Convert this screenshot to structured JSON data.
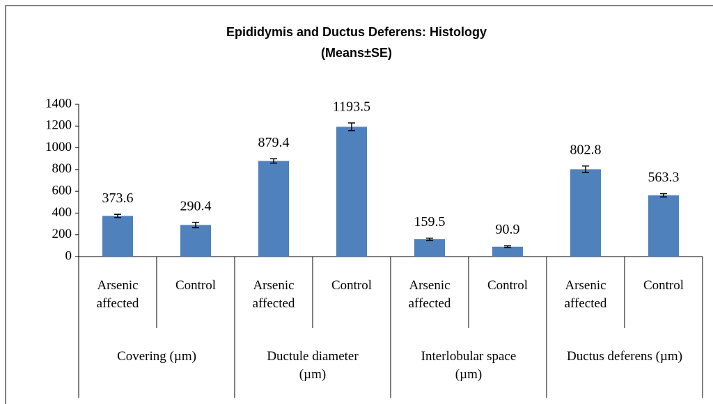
{
  "chart_data": {
    "type": "bar",
    "title": "Epididymis and Ductus Deferens: Histology",
    "subtitle": "(Means±SE)",
    "categories": [
      "Arsenic affected",
      "Control",
      "Arsenic affected",
      "Control",
      "Arsenic affected",
      "Control",
      "Arsenic affected",
      "Control"
    ],
    "groups": [
      "Covering (µm)",
      "Ductule diameter (µm)",
      "Interlobular space (µm)",
      "Ductus deferens (µm)"
    ],
    "values": [
      373.6,
      290.4,
      879.4,
      1193.5,
      159.5,
      90.9,
      802.8,
      563.3
    ],
    "errors": [
      15,
      25,
      20,
      35,
      10,
      8,
      30,
      15
    ],
    "color": "#4f81bd",
    "ylim": [
      0,
      1400
    ],
    "yticks": [
      0,
      200,
      400,
      600,
      800,
      1000,
      1200,
      1400
    ]
  }
}
